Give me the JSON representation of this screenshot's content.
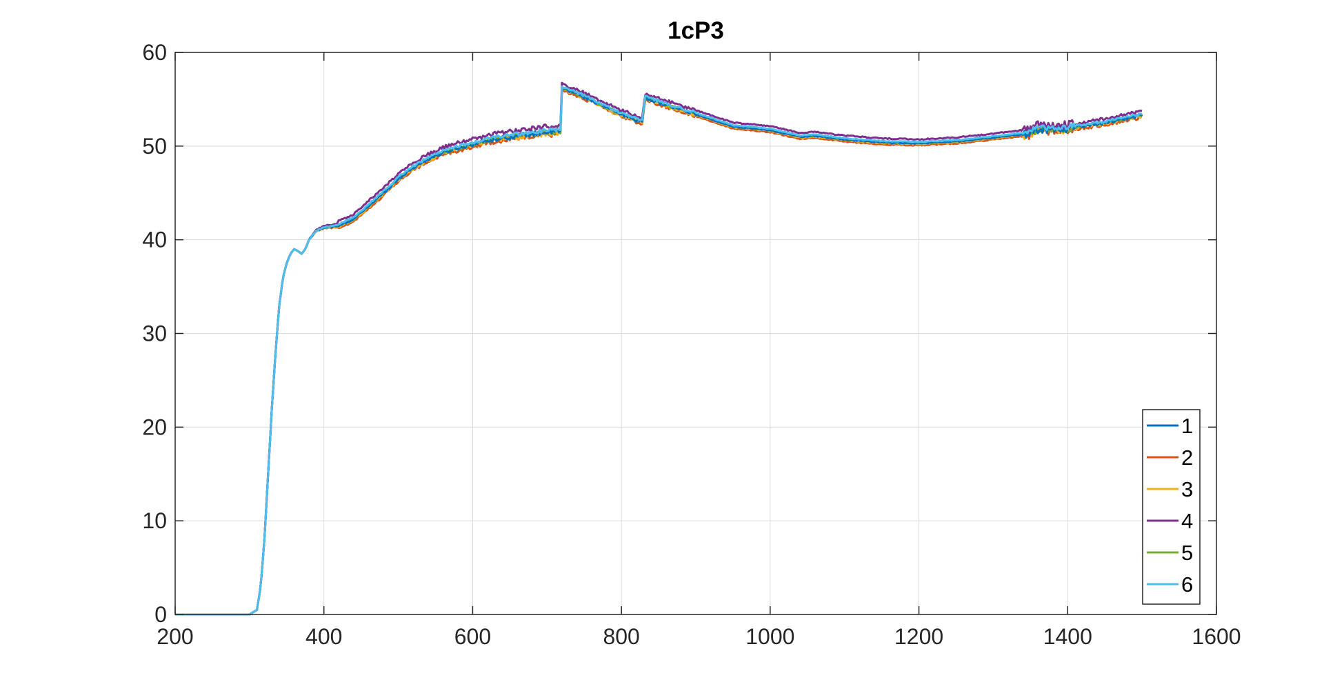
{
  "chart_data": {
    "type": "line",
    "title": "1cP3",
    "xlabel": "",
    "ylabel": "",
    "xlim": [
      200,
      1600
    ],
    "ylim": [
      0,
      60
    ],
    "xticks": [
      200,
      400,
      600,
      800,
      1000,
      1200,
      1400,
      1600
    ],
    "yticks": [
      0,
      10,
      20,
      30,
      40,
      50,
      60
    ],
    "grid": true,
    "legend_position": "bottom-right",
    "base_curve": [
      [
        200,
        0
      ],
      [
        300,
        0
      ],
      [
        310,
        0.5
      ],
      [
        315,
        3
      ],
      [
        320,
        8
      ],
      [
        325,
        15
      ],
      [
        330,
        22
      ],
      [
        335,
        28
      ],
      [
        340,
        33
      ],
      [
        345,
        36
      ],
      [
        350,
        37.5
      ],
      [
        355,
        38.5
      ],
      [
        360,
        39
      ],
      [
        365,
        38.8
      ],
      [
        370,
        38.5
      ],
      [
        375,
        39
      ],
      [
        380,
        40
      ],
      [
        390,
        41
      ],
      [
        400,
        41.3
      ],
      [
        420,
        41.5
      ],
      [
        440,
        42.2
      ],
      [
        460,
        43.6
      ],
      [
        480,
        45
      ],
      [
        500,
        46.5
      ],
      [
        520,
        47.7
      ],
      [
        540,
        48.6
      ],
      [
        560,
        49.3
      ],
      [
        580,
        49.8
      ],
      [
        600,
        50.2
      ],
      [
        620,
        50.6
      ],
      [
        640,
        50.9
      ],
      [
        660,
        51.1
      ],
      [
        680,
        51.3
      ],
      [
        700,
        51.5
      ],
      [
        718,
        51.6
      ],
      [
        720,
        56.2
      ],
      [
        740,
        55.6
      ],
      [
        760,
        54.9
      ],
      [
        780,
        54.1
      ],
      [
        800,
        53.4
      ],
      [
        820,
        52.8
      ],
      [
        829,
        52.6
      ],
      [
        831,
        55.2
      ],
      [
        860,
        54.4
      ],
      [
        900,
        53.4
      ],
      [
        950,
        52.1
      ],
      [
        1000,
        51.7
      ],
      [
        1040,
        51.0
      ],
      [
        1060,
        51.1
      ],
      [
        1100,
        50.7
      ],
      [
        1150,
        50.4
      ],
      [
        1200,
        50.3
      ],
      [
        1250,
        50.5
      ],
      [
        1300,
        50.9
      ],
      [
        1330,
        51.2
      ],
      [
        1345,
        51.3
      ],
      [
        1360,
        51.8
      ],
      [
        1400,
        51.9
      ],
      [
        1450,
        52.5
      ],
      [
        1500,
        53.3
      ]
    ],
    "series": [
      {
        "name": "1",
        "color": "#0072BD",
        "offset": 0.0,
        "noise": 0.35
      },
      {
        "name": "2",
        "color": "#D95319",
        "offset": -0.3,
        "noise": 0.35
      },
      {
        "name": "3",
        "color": "#EDB120",
        "offset": -0.1,
        "noise": 0.4
      },
      {
        "name": "4",
        "color": "#7E2F8E",
        "offset": 0.6,
        "noise": 0.35
      },
      {
        "name": "5",
        "color": "#77AC30",
        "offset": 0.0,
        "noise": 0.3
      },
      {
        "name": "6",
        "color": "#4DBEEE",
        "offset": 0.2,
        "noise": 0.25
      }
    ]
  }
}
